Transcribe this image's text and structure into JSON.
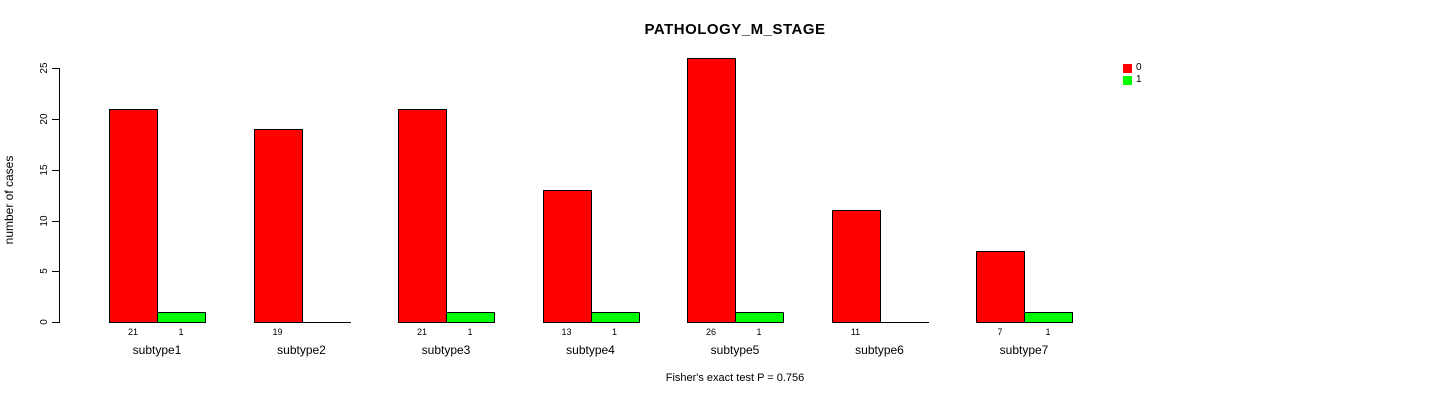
{
  "title": "PATHOLOGY_M_STAGE",
  "caption": "Fisher's exact test P = 0.756",
  "ylabel": "number of cases",
  "colors": {
    "series0": "#FF0000",
    "series1": "#00FF00",
    "axis": "#000000",
    "background": "#FFFFFF"
  },
  "legend": {
    "entries": [
      {
        "label": "0",
        "color": "#FF0000"
      },
      {
        "label": "1",
        "color": "#00FF00"
      }
    ]
  },
  "chart_data": {
    "type": "bar",
    "title": "PATHOLOGY_M_STAGE",
    "xlabel": "",
    "ylabel": "number of cases",
    "categories": [
      "subtype1",
      "subtype2",
      "subtype3",
      "subtype4",
      "subtype5",
      "subtype6",
      "subtype7"
    ],
    "series": [
      {
        "name": "0",
        "color": "#FF0000",
        "values": [
          21,
          19,
          21,
          13,
          26,
          11,
          7
        ]
      },
      {
        "name": "1",
        "color": "#00FF00",
        "values": [
          1,
          0,
          1,
          1,
          1,
          0,
          1
        ]
      }
    ],
    "bar_value_labels": [
      [
        "21",
        "1"
      ],
      [
        "19",
        ""
      ],
      [
        "21",
        "1"
      ],
      [
        "13",
        "1"
      ],
      [
        "26",
        "1"
      ],
      [
        "11",
        ""
      ],
      [
        "7",
        "1"
      ]
    ],
    "yticks": [
      0,
      5,
      10,
      15,
      20,
      25
    ],
    "ylim": [
      0,
      26
    ],
    "grid": false,
    "legend_position": "top-right",
    "annotation": "Fisher's exact test P = 0.756"
  }
}
